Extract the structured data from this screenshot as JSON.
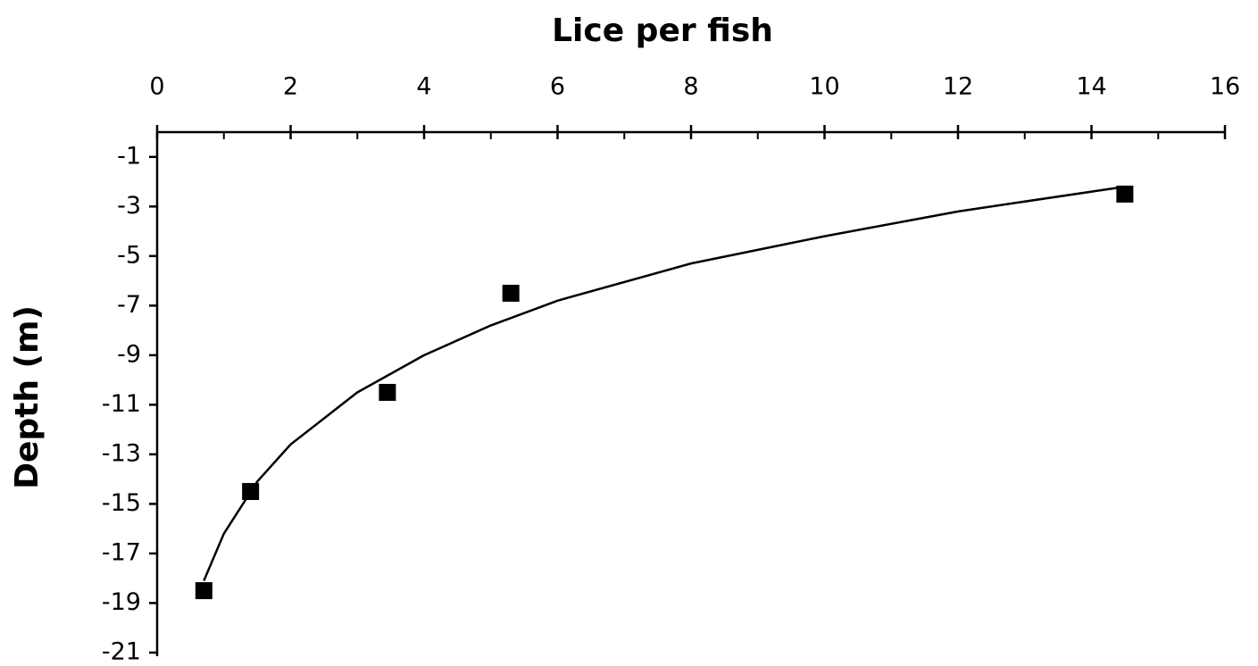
{
  "chart_data": {
    "type": "scatter",
    "xlabel": "Lice per fish",
    "ylabel": "Depth (m)",
    "x": [
      0.7,
      1.4,
      3.45,
      5.3,
      14.5
    ],
    "values": [
      -18.5,
      -14.5,
      -10.5,
      -6.5,
      -2.5
    ],
    "color": "#000000",
    "marker": "square",
    "trendline": {
      "x": [
        0.7,
        1,
        1.5,
        2,
        3,
        4,
        5,
        6,
        8,
        10,
        12,
        14.5
      ],
      "values": [
        -18.1,
        -16.2,
        -14.1,
        -12.6,
        -10.5,
        -9.0,
        -7.8,
        -6.8,
        -5.3,
        -4.2,
        -3.2,
        -2.2
      ],
      "color": "#000000"
    },
    "xaxis_position": "top",
    "xlim": [
      0,
      16
    ],
    "xticks": [
      0,
      2,
      4,
      6,
      8,
      10,
      12,
      14,
      16
    ],
    "ylim": [
      -21,
      0
    ],
    "yticks": [
      -1,
      -3,
      -5,
      -7,
      -9,
      -11,
      -13,
      -15,
      -17,
      -19,
      -21
    ],
    "grid": false
  }
}
